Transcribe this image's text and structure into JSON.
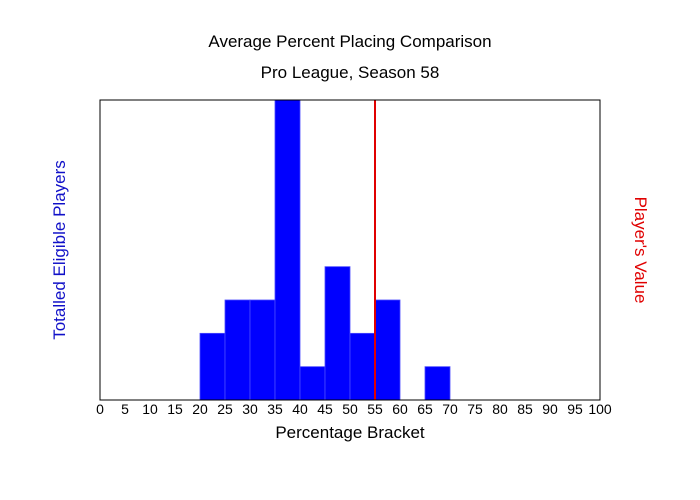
{
  "chart_data": {
    "type": "bar",
    "title": "Average Percent Placing Comparison",
    "subtitle": "Pro League, Season 58",
    "xlabel": "Percentage Bracket",
    "ylabel": "Totalled Eligible Players",
    "y2label": "Player's Value",
    "xlim": [
      0,
      100
    ],
    "ylim": [
      0,
      9
    ],
    "x_ticks": [
      "0",
      "5",
      "10",
      "15",
      "20",
      "25",
      "30",
      "35",
      "40",
      "45",
      "50",
      "55",
      "60",
      "65",
      "70",
      "75",
      "80",
      "85",
      "90",
      "95",
      "100"
    ],
    "bins": [
      {
        "start": 20,
        "end": 25,
        "value": 2
      },
      {
        "start": 25,
        "end": 30,
        "value": 3
      },
      {
        "start": 30,
        "end": 35,
        "value": 3
      },
      {
        "start": 35,
        "end": 40,
        "value": 9
      },
      {
        "start": 40,
        "end": 45,
        "value": 1
      },
      {
        "start": 45,
        "end": 50,
        "value": 4
      },
      {
        "start": 50,
        "end": 55,
        "value": 2
      },
      {
        "start": 55,
        "end": 60,
        "value": 3
      },
      {
        "start": 65,
        "end": 70,
        "value": 1
      }
    ],
    "player_value": 55.0,
    "bar_color": "#0000ff",
    "marker_color": "#e00000",
    "ylabel_color": "#1010c8",
    "grid": false
  }
}
